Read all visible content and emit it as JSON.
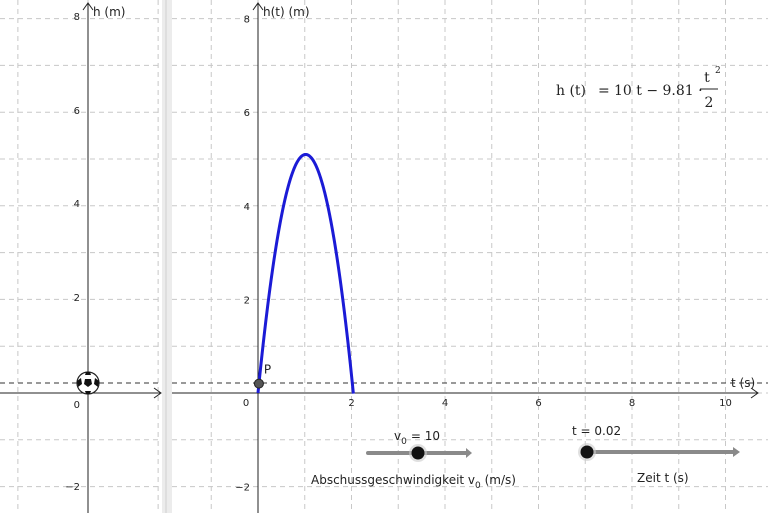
{
  "left_view": {
    "ylabel": "h (m)",
    "y_ticks": [
      "8",
      "6",
      "4",
      "2",
      "−2"
    ],
    "origin_label": "0"
  },
  "right_view": {
    "ylabel": "h(t) (m)",
    "xlabel": "t (s)",
    "y_ticks": [
      "8",
      "6",
      "4",
      "2",
      "−2"
    ],
    "x_ticks": [
      "0",
      "2",
      "4",
      "6",
      "8",
      "10"
    ],
    "point_label": "P",
    "formula": {
      "lhs": "h (t)",
      "eq": "=",
      "main": "10 t − 9.81 ·",
      "frac_num": "t",
      "frac_sup": "2",
      "frac_den": "2"
    }
  },
  "sliders": {
    "v0": {
      "name": "v",
      "sub": "0",
      "value_text": "= 10",
      "value": 10,
      "caption_prefix": "Abschussgeschwindigkeit v",
      "caption_sub": "0",
      "caption_suffix": " (m/s)"
    },
    "t": {
      "label": "t = 0.02",
      "value": 0.02,
      "caption": "Zeit t (s)"
    }
  },
  "colors": {
    "curve": "#1b1bd6",
    "grid": "#c8c8c8",
    "axis": "#222222",
    "slider_track": "#8a8a8a",
    "divider": "#d6d6d6"
  },
  "chart_data": {
    "type": "line",
    "function": "h(t) = 10 t − 9.81 · t²/2",
    "v0": 10,
    "g": 9.81,
    "x_range": [
      0,
      2.04
    ],
    "xlim": [
      -0.9,
      10.8
    ],
    "ylim": [
      -2.5,
      8.3
    ],
    "point_P": {
      "t": 0.02,
      "h": 0.2
    },
    "dashed_height": 0.2,
    "icon": "soccer-ball-icon"
  }
}
